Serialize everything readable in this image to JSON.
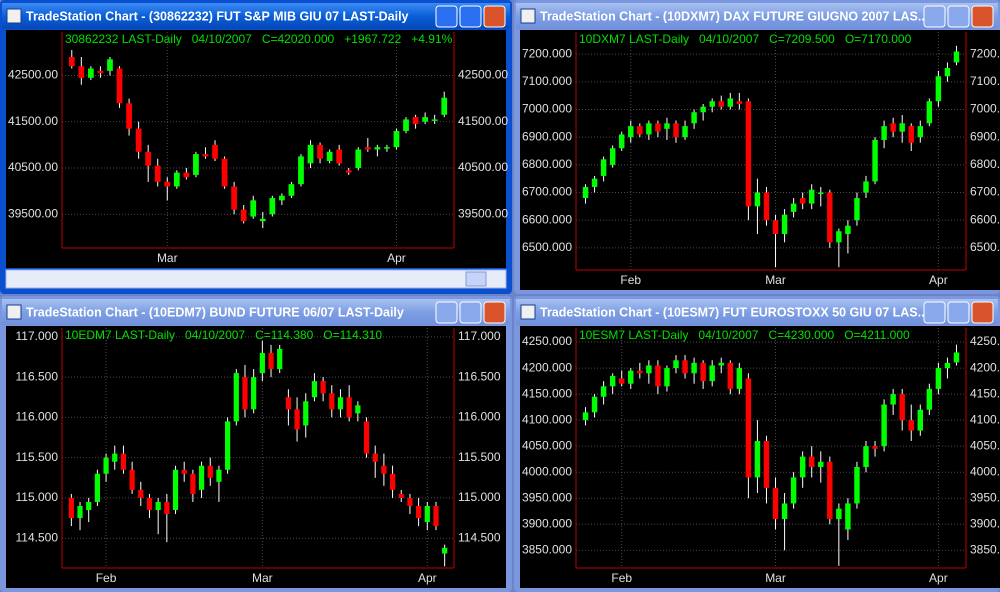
{
  "chart_data": [
    {
      "type": "candlestick",
      "title": "TradeStation Chart - (30862232) FUT S&P MIB GIU 07 LAST-Daily",
      "info": [
        "30862232 LAST-Daily",
        "04/10/2007",
        "C=42020.000",
        "+1967.722",
        "+4.91%"
      ],
      "categories": [
        null,
        null,
        null,
        null,
        null,
        null,
        null,
        null,
        null,
        null,
        "Mar",
        null,
        null,
        null,
        null,
        null,
        null,
        null,
        null,
        null,
        null,
        null,
        null,
        null,
        null,
        null,
        null,
        null,
        null,
        null,
        null,
        null,
        null,
        null,
        "Apr",
        null,
        null,
        null,
        null,
        null
      ],
      "open": [
        42900,
        42700,
        42450,
        42600,
        42600,
        42650,
        41900,
        41350,
        40850,
        40550,
        40200,
        40100,
        40400,
        40350,
        40800,
        41000,
        40700,
        40100,
        39600,
        39450,
        39350,
        39500,
        39800,
        39900,
        40150,
        40600,
        41000,
        40650,
        40900,
        40450,
        40500,
        40950,
        40900,
        40950,
        40950,
        41300,
        41600,
        41500,
        41550,
        41650
      ],
      "high": [
        43050,
        42900,
        42700,
        42700,
        42900,
        42700,
        42000,
        41500,
        41000,
        40700,
        40300,
        40450,
        40500,
        40850,
        40950,
        41100,
        40750,
        40200,
        39700,
        39900,
        39550,
        39900,
        39950,
        40200,
        40800,
        41100,
        41050,
        40900,
        41000,
        40500,
        40950,
        41150,
        41000,
        41000,
        41350,
        41600,
        41650,
        41700,
        41650,
        42150
      ],
      "low": [
        42650,
        42300,
        42400,
        42450,
        42500,
        41800,
        41200,
        40700,
        40200,
        40100,
        39800,
        40050,
        40250,
        40300,
        40700,
        40650,
        40050,
        39500,
        39300,
        39400,
        39200,
        39450,
        39700,
        39850,
        40100,
        40500,
        40600,
        40600,
        40550,
        40350,
        40450,
        40850,
        40750,
        40850,
        40900,
        41250,
        41350,
        41450,
        41450,
        41600
      ],
      "close": [
        42700,
        42450,
        42650,
        42550,
        42850,
        41900,
        41350,
        40850,
        40550,
        40200,
        40100,
        40400,
        40300,
        40800,
        40750,
        40700,
        40100,
        39600,
        39350,
        39800,
        39400,
        39850,
        39900,
        40150,
        40750,
        41000,
        40700,
        40850,
        40600,
        40400,
        40900,
        40900,
        40950,
        40950,
        41300,
        41550,
        41450,
        41600,
        41550,
        42020
      ],
      "up_color": "#00ff00",
      "down_color": "#ff0000",
      "ylim": [
        38770,
        43440
      ],
      "yticks": [
        {
          "value": 39500,
          "label": "39500.00"
        },
        {
          "value": 40500,
          "label": "40500.00"
        },
        {
          "value": 41500,
          "label": "41500.00"
        },
        {
          "value": 42500,
          "label": "42500.00"
        }
      ],
      "grid": true
    },
    {
      "type": "candlestick",
      "title": "TradeStation Chart - (10DXM7) DAX FUTURE GIUGNO 2007 LAS...",
      "info": [
        "10DXM7 LAST-Daily",
        "04/10/2007",
        "C=7209.500",
        "O=7170.000"
      ],
      "categories": [
        null,
        null,
        null,
        null,
        null,
        "Feb",
        null,
        null,
        null,
        null,
        null,
        null,
        null,
        null,
        null,
        null,
        null,
        null,
        null,
        null,
        null,
        "Mar",
        null,
        null,
        null,
        null,
        null,
        null,
        null,
        null,
        null,
        null,
        null,
        null,
        null,
        null,
        null,
        null,
        null,
        "Apr",
        null,
        null
      ],
      "open": [
        6680,
        6720,
        6760,
        6800,
        6860,
        6900,
        6940,
        6910,
        6950,
        6930,
        6950,
        6900,
        6950,
        6990,
        7010,
        7030,
        7010,
        7030,
        7030,
        6650,
        6700,
        6600,
        6550,
        6630,
        6680,
        6660,
        6700,
        6700,
        6520,
        6550,
        6600,
        6700,
        6740,
        6890,
        6950,
        6920,
        6940,
        6900,
        6950,
        7030,
        7120,
        7170
      ],
      "high": [
        6730,
        6760,
        6830,
        6870,
        6920,
        6960,
        6950,
        6960,
        6960,
        6970,
        6960,
        6960,
        7000,
        7020,
        7040,
        7050,
        7060,
        7060,
        7040,
        6750,
        6720,
        6620,
        6640,
        6680,
        6700,
        6730,
        6720,
        6710,
        6570,
        6600,
        6700,
        6760,
        6900,
        6960,
        6970,
        6980,
        6950,
        6960,
        7040,
        7140,
        7170,
        7230
      ],
      "low": [
        6660,
        6700,
        6740,
        6790,
        6850,
        6880,
        6900,
        6890,
        6900,
        6890,
        6880,
        6890,
        6930,
        6960,
        6990,
        7000,
        7000,
        7000,
        6600,
        6550,
        6580,
        6430,
        6520,
        6610,
        6640,
        6640,
        6650,
        6500,
        6430,
        6480,
        6580,
        6680,
        6730,
        6860,
        6900,
        6880,
        6850,
        6880,
        6940,
        7010,
        7100,
        7160
      ],
      "close": [
        6720,
        6750,
        6820,
        6860,
        6910,
        6940,
        6910,
        6950,
        6920,
        6950,
        6900,
        6940,
        6990,
        7010,
        7030,
        7010,
        7040,
        7020,
        6650,
        6700,
        6600,
        6550,
        6620,
        6660,
        6660,
        6710,
        6700,
        6520,
        6560,
        6580,
        6680,
        6740,
        6890,
        6940,
        6920,
        6950,
        6880,
        6940,
        7030,
        7120,
        7150,
        7209.5
      ],
      "up_color": "#00ff00",
      "down_color": "#ff0000",
      "ylim": [
        6420,
        7280
      ],
      "yticks": [
        {
          "value": 6500,
          "label": "6500.000"
        },
        {
          "value": 6600,
          "label": "6600.000"
        },
        {
          "value": 6700,
          "label": "6700.000"
        },
        {
          "value": 6800,
          "label": "6800.000"
        },
        {
          "value": 6900,
          "label": "6900.000"
        },
        {
          "value": 7000,
          "label": "7000.000"
        },
        {
          "value": 7100,
          "label": "7100.000"
        },
        {
          "value": 7200,
          "label": "7200.000"
        }
      ],
      "grid": true
    },
    {
      "type": "candlestick",
      "title": "TradeStation Chart - (10EDM7) BUND FUTURE 06/07 LAST-Daily",
      "info": [
        "10EDM7 LAST-Daily",
        "04/10/2007",
        "C=114.380",
        "O=114.310"
      ],
      "categories": [
        null,
        null,
        null,
        null,
        "Feb",
        null,
        null,
        null,
        null,
        null,
        null,
        null,
        null,
        null,
        null,
        null,
        null,
        null,
        null,
        null,
        null,
        null,
        "Mar",
        null,
        null,
        null,
        null,
        null,
        null,
        null,
        null,
        null,
        null,
        null,
        null,
        null,
        null,
        null,
        null,
        null,
        null,
        "Apr",
        null,
        null
      ],
      "open": [
        115.0,
        114.75,
        114.85,
        114.95,
        115.3,
        115.45,
        115.55,
        115.35,
        115.1,
        115.0,
        114.85,
        114.95,
        114.85,
        115.35,
        115.3,
        115.1,
        115.4,
        115.2,
        115.35,
        115.95,
        116.5,
        116.1,
        116.55,
        116.8,
        116.6,
        116.25,
        116.1,
        115.9,
        116.25,
        116.45,
        116.3,
        116.1,
        116.25,
        116.05,
        115.95,
        115.55,
        115.4,
        115.3,
        115.05,
        115.0,
        114.9,
        114.7,
        114.9,
        114.31
      ],
      "high": [
        115.05,
        114.95,
        115.0,
        115.35,
        115.55,
        115.65,
        115.65,
        115.45,
        115.2,
        115.05,
        115.0,
        115.05,
        115.4,
        115.45,
        115.35,
        115.45,
        115.5,
        115.4,
        116.0,
        116.6,
        116.65,
        116.6,
        116.95,
        116.9,
        116.9,
        116.35,
        116.25,
        116.3,
        116.55,
        116.5,
        116.4,
        116.35,
        116.4,
        116.2,
        116.0,
        115.65,
        115.55,
        115.4,
        115.1,
        115.05,
        115.0,
        114.95,
        114.95,
        114.42
      ],
      "low": [
        114.65,
        114.6,
        114.7,
        114.9,
        115.2,
        115.35,
        115.3,
        115.05,
        114.9,
        114.75,
        114.55,
        114.45,
        114.8,
        115.2,
        114.95,
        115.0,
        115.15,
        114.95,
        115.3,
        115.9,
        116.0,
        116.05,
        116.45,
        116.5,
        116.55,
        115.9,
        115.7,
        115.75,
        116.2,
        116.2,
        116.0,
        116.0,
        115.95,
        115.95,
        115.5,
        115.25,
        115.15,
        115.0,
        114.95,
        114.8,
        114.65,
        114.6,
        114.6,
        114.15
      ],
      "close": [
        114.75,
        114.9,
        114.95,
        115.3,
        115.5,
        115.55,
        115.35,
        115.1,
        115.0,
        114.85,
        114.95,
        114.8,
        115.35,
        115.3,
        115.05,
        115.4,
        115.25,
        115.35,
        115.95,
        116.55,
        116.1,
        116.5,
        116.8,
        116.6,
        116.85,
        116.1,
        115.85,
        116.2,
        116.45,
        116.3,
        116.1,
        116.25,
        116.0,
        116.15,
        115.55,
        115.45,
        115.3,
        115.1,
        115.0,
        114.9,
        114.75,
        114.9,
        114.65,
        114.38
      ],
      "up_color": "#00ff00",
      "down_color": "#ff0000",
      "ylim": [
        114.13,
        117.11
      ],
      "yticks": [
        {
          "value": 114.5,
          "label": "114.500"
        },
        {
          "value": 115,
          "label": "115.000"
        },
        {
          "value": 115.5,
          "label": "115.500"
        },
        {
          "value": 116,
          "label": "116.000"
        },
        {
          "value": 116.5,
          "label": "116.500"
        },
        {
          "value": 117,
          "label": "117.000"
        }
      ],
      "grid": true
    },
    {
      "type": "candlestick",
      "title": "TradeStation Chart - (10ESM7) FUT EUROSTOXX 50  GIU 07 LAS...",
      "info": [
        "10ESM7 LAST-Daily",
        "04/10/2007",
        "C=4230.000",
        "O=4211.000"
      ],
      "categories": [
        null,
        null,
        null,
        null,
        "Feb",
        null,
        null,
        null,
        null,
        null,
        null,
        null,
        null,
        null,
        null,
        null,
        null,
        null,
        null,
        null,
        null,
        "Mar",
        null,
        null,
        null,
        null,
        null,
        null,
        null,
        null,
        null,
        null,
        null,
        null,
        null,
        null,
        null,
        null,
        null,
        "Apr",
        null,
        null
      ],
      "open": [
        4100,
        4115,
        4145,
        4165,
        4180,
        4170,
        4195,
        4190,
        4205,
        4165,
        4200,
        4215,
        4190,
        4210,
        4175,
        4205,
        4210,
        4160,
        4180,
        3990,
        4060,
        3970,
        3910,
        3940,
        3990,
        4030,
        4010,
        4020,
        3910,
        3890,
        3940,
        4010,
        4050,
        4050,
        4130,
        4150,
        4100,
        4080,
        4120,
        4160,
        4200,
        4211
      ],
      "high": [
        4125,
        4150,
        4175,
        4190,
        4195,
        4200,
        4210,
        4215,
        4215,
        4205,
        4225,
        4225,
        4220,
        4215,
        4215,
        4220,
        4215,
        4210,
        4190,
        4100,
        4070,
        3990,
        3960,
        4000,
        4040,
        4050,
        4040,
        4030,
        3940,
        3950,
        4020,
        4060,
        4060,
        4140,
        4160,
        4160,
        4130,
        4130,
        4170,
        4210,
        4220,
        4245
      ],
      "low": [
        4090,
        4105,
        4130,
        4150,
        4165,
        4160,
        4180,
        4170,
        4150,
        4155,
        4190,
        4180,
        4170,
        4160,
        4165,
        4190,
        4150,
        4150,
        3950,
        3960,
        3940,
        3890,
        3850,
        3930,
        3970,
        3990,
        3980,
        3900,
        3820,
        3870,
        3930,
        4000,
        4030,
        4040,
        4110,
        4080,
        4060,
        4070,
        4110,
        4150,
        4180,
        4205
      ],
      "close": [
        4115,
        4145,
        4165,
        4185,
        4170,
        4195,
        4190,
        4205,
        4165,
        4200,
        4215,
        4190,
        4210,
        4175,
        4205,
        4210,
        4160,
        4200,
        3990,
        4060,
        3970,
        3910,
        3940,
        3990,
        4030,
        4010,
        4020,
        3910,
        3930,
        3940,
        4010,
        4050,
        4045,
        4130,
        4150,
        4100,
        4080,
        4120,
        4160,
        4200,
        4210,
        4230
      ],
      "up_color": "#00ff00",
      "down_color": "#ff0000",
      "ylim": [
        3816,
        4277
      ],
      "yticks": [
        {
          "value": 3850,
          "label": "3850.000"
        },
        {
          "value": 3900,
          "label": "3900.000"
        },
        {
          "value": 3950,
          "label": "3950.000"
        },
        {
          "value": 4000,
          "label": "4000.000"
        },
        {
          "value": 4050,
          "label": "4050.000"
        },
        {
          "value": 4100,
          "label": "4100.000"
        },
        {
          "value": 4150,
          "label": "4150.000"
        },
        {
          "value": 4200,
          "label": "4200.000"
        },
        {
          "value": 4250,
          "label": "4250.000"
        }
      ],
      "grid": true
    }
  ]
}
